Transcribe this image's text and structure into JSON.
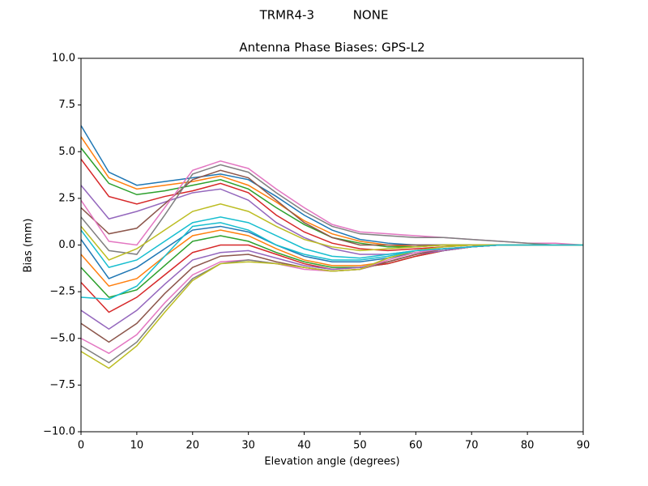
{
  "chart_data": {
    "type": "line",
    "suptitle": "TRMR4-3          NONE",
    "title": "Antenna Phase Biases: GPS-L2",
    "xlabel": "Elevation angle (degrees)",
    "ylabel": "Bias (mm)",
    "x": [
      0,
      5,
      10,
      15,
      20,
      25,
      30,
      35,
      40,
      45,
      50,
      55,
      60,
      65,
      70,
      75,
      80,
      85,
      90
    ],
    "xlim": [
      0,
      90
    ],
    "xticks": [
      0,
      10,
      20,
      30,
      40,
      50,
      60,
      70,
      80,
      90
    ],
    "ylim": [
      -10,
      10
    ],
    "yticks": [
      {
        "value": -10,
        "label": "−10.0"
      },
      {
        "value": -7.5,
        "label": "−7.5"
      },
      {
        "value": -5,
        "label": "−5.0"
      },
      {
        "value": -2.5,
        "label": "−2.5"
      },
      {
        "value": 0,
        "label": "0.0"
      },
      {
        "value": 2.5,
        "label": "2.5"
      },
      {
        "value": 5,
        "label": "5.0"
      },
      {
        "value": 7.5,
        "label": "7.5"
      },
      {
        "value": 10,
        "label": "10.0"
      }
    ],
    "series": [
      {
        "color": "#1f77b4",
        "values": [
          6.4,
          3.9,
          3.2,
          3.4,
          3.6,
          3.8,
          3.5,
          2.6,
          1.6,
          0.8,
          0.3,
          0.1,
          0,
          0,
          0,
          0,
          0,
          0,
          0
        ]
      },
      {
        "color": "#ff7f0e",
        "values": [
          5.8,
          3.6,
          3.0,
          3.2,
          3.4,
          3.7,
          3.2,
          2.3,
          1.3,
          0.6,
          0.2,
          0,
          -0.1,
          0,
          0,
          0,
          0,
          0,
          0
        ]
      },
      {
        "color": "#2ca02c",
        "values": [
          5.2,
          3.3,
          2.7,
          2.9,
          3.2,
          3.5,
          3.0,
          2.0,
          1.1,
          0.4,
          0.1,
          -0.1,
          -0.1,
          0,
          0,
          0,
          0,
          0,
          0
        ]
      },
      {
        "color": "#d62728",
        "values": [
          4.6,
          2.6,
          2.2,
          2.6,
          2.9,
          3.3,
          2.8,
          1.6,
          0.7,
          0.1,
          -0.2,
          -0.3,
          -0.2,
          -0.1,
          0,
          0,
          0,
          0,
          0
        ]
      },
      {
        "color": "#9467bd",
        "values": [
          3.2,
          1.4,
          1.8,
          2.3,
          2.8,
          3.0,
          2.4,
          1.2,
          0.4,
          -0.2,
          -0.5,
          -0.5,
          -0.3,
          -0.2,
          -0.1,
          0,
          0,
          0,
          0
        ]
      },
      {
        "color": "#8c564b",
        "values": [
          2.0,
          0.6,
          0.9,
          2.2,
          3.5,
          4.0,
          3.6,
          2.4,
          1.2,
          0.4,
          0,
          0,
          0,
          0,
          0,
          0,
          0,
          0,
          0
        ]
      },
      {
        "color": "#e377c2",
        "values": [
          2.4,
          0.2,
          0,
          2.0,
          4.0,
          4.5,
          4.1,
          3.0,
          2.0,
          1.1,
          0.7,
          0.6,
          0.5,
          0.4,
          0.3,
          0.2,
          0.1,
          0.1,
          0
        ]
      },
      {
        "color": "#7f7f7f",
        "values": [
          1.5,
          -0.3,
          -0.5,
          1.6,
          3.8,
          4.3,
          3.9,
          2.8,
          1.8,
          1.0,
          0.6,
          0.5,
          0.4,
          0.4,
          0.3,
          0.2,
          0.1,
          0,
          0
        ]
      },
      {
        "color": "#bcbd22",
        "values": [
          1.0,
          -0.8,
          -0.2,
          0.8,
          1.8,
          2.2,
          1.8,
          1.0,
          0.3,
          -0.1,
          -0.3,
          -0.2,
          -0.1,
          0,
          0,
          0,
          0,
          0,
          0
        ]
      },
      {
        "color": "#17becf",
        "values": [
          0.8,
          -1.2,
          -0.8,
          0.2,
          1.2,
          1.5,
          1.2,
          0.5,
          -0.2,
          -0.6,
          -0.7,
          -0.5,
          -0.3,
          -0.2,
          -0.1,
          0,
          0,
          0,
          0
        ]
      },
      {
        "color": "#1f77b4",
        "values": [
          0.3,
          -1.8,
          -1.2,
          -0.2,
          0.8,
          1.0,
          0.7,
          0,
          -0.6,
          -0.9,
          -0.9,
          -0.7,
          -0.4,
          -0.2,
          -0.1,
          0,
          0,
          0,
          0
        ]
      },
      {
        "color": "#ff7f0e",
        "values": [
          -0.5,
          -2.2,
          -1.8,
          -0.6,
          0.5,
          0.8,
          0.5,
          -0.2,
          -0.8,
          -1.1,
          -1.1,
          -0.9,
          -0.5,
          -0.3,
          -0.1,
          0,
          0,
          0,
          0
        ]
      },
      {
        "color": "#2ca02c",
        "values": [
          -1.2,
          -2.8,
          -2.4,
          -1.1,
          0.2,
          0.5,
          0.2,
          -0.4,
          -0.9,
          -1.2,
          -1.2,
          -1.0,
          -0.6,
          -0.3,
          -0.1,
          0,
          0,
          0,
          0
        ]
      },
      {
        "color": "#d62728",
        "values": [
          -2.0,
          -3.6,
          -2.8,
          -1.6,
          -0.4,
          0,
          0,
          -0.5,
          -1.0,
          -1.3,
          -1.2,
          -1.0,
          -0.6,
          -0.3,
          -0.1,
          0,
          0,
          0,
          0
        ]
      },
      {
        "color": "#9467bd",
        "values": [
          -3.5,
          -4.5,
          -3.5,
          -2.1,
          -0.8,
          -0.4,
          -0.3,
          -0.7,
          -1.1,
          -1.3,
          -1.2,
          -0.9,
          -0.5,
          -0.3,
          -0.1,
          0,
          0,
          0,
          0
        ]
      },
      {
        "color": "#8c564b",
        "values": [
          -4.2,
          -5.2,
          -4.2,
          -2.6,
          -1.2,
          -0.6,
          -0.5,
          -0.9,
          -1.2,
          -1.4,
          -1.3,
          -0.9,
          -0.5,
          -0.2,
          -0.1,
          0,
          0,
          0,
          0
        ]
      },
      {
        "color": "#e377c2",
        "values": [
          -5.0,
          -5.8,
          -4.8,
          -3.1,
          -1.6,
          -0.9,
          -0.8,
          -1.0,
          -1.3,
          -1.4,
          -1.3,
          -0.8,
          -0.4,
          -0.2,
          -0.1,
          0,
          0,
          0,
          0
        ]
      },
      {
        "color": "#7f7f7f",
        "values": [
          -5.4,
          -6.3,
          -5.2,
          -3.4,
          -1.8,
          -1.0,
          -0.8,
          -1.0,
          -1.2,
          -1.4,
          -1.3,
          -0.7,
          -0.3,
          -0.1,
          0,
          0,
          0,
          0,
          0
        ]
      },
      {
        "color": "#bcbd22",
        "values": [
          -5.7,
          -6.6,
          -5.4,
          -3.6,
          -1.9,
          -1.0,
          -0.9,
          -1.0,
          -1.2,
          -1.4,
          -1.3,
          -0.7,
          -0.3,
          -0.1,
          0,
          0,
          0,
          0,
          0
        ]
      },
      {
        "color": "#17becf",
        "values": [
          -2.8,
          -2.9,
          -2.2,
          -0.6,
          1.0,
          1.2,
          0.8,
          0,
          -0.5,
          -0.8,
          -0.8,
          -0.6,
          -0.3,
          -0.2,
          -0.1,
          0,
          0,
          0,
          0
        ]
      }
    ]
  }
}
